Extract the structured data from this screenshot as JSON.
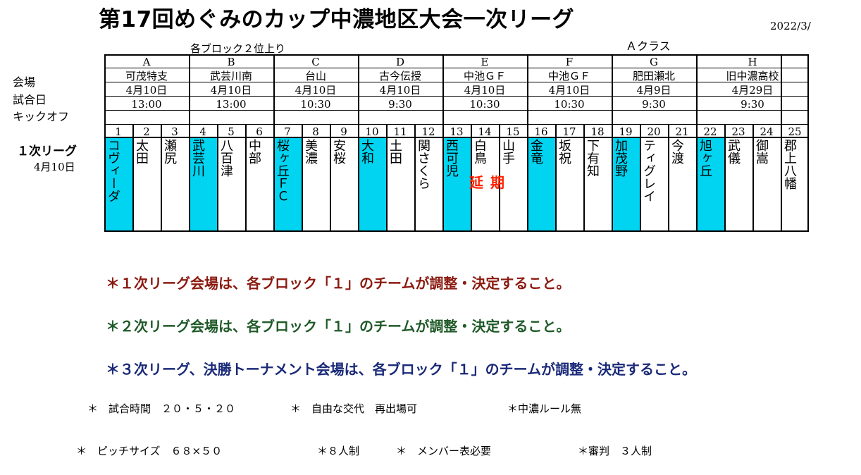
{
  "title": "第17回めぐみのカップ中濃地区大会一次リーグ",
  "date": "2022/3/",
  "class_label": "Ａクラス",
  "note": "各ブロック２位上り",
  "row_labels": {
    "venue": "会場",
    "match_day": "試合日",
    "kickoff": "キックオフ"
  },
  "league": {
    "label": "１次リーグ",
    "date": "4月10日"
  },
  "blocks": [
    {
      "name": "A",
      "venue": "可茂特支",
      "date": "4月10日",
      "kickoff": "13:00"
    },
    {
      "name": "B",
      "venue": "武芸川南",
      "date": "4月10日",
      "kickoff": "13:00"
    },
    {
      "name": "C",
      "venue": "台山",
      "date": "4月10日",
      "kickoff": "10:30"
    },
    {
      "name": "D",
      "venue": "古今伝授",
      "date": "4月10日",
      "kickoff": "9:30"
    },
    {
      "name": "E",
      "venue": "中池ＧＦ",
      "date": "4月10日",
      "kickoff": "10:30"
    },
    {
      "name": "F",
      "venue": "中池ＧＦ",
      "date": "4月10日",
      "kickoff": "10:30"
    },
    {
      "name": "G",
      "venue": "肥田瀬北",
      "date": "4月9日",
      "kickoff": "9:30"
    },
    {
      "name": "H",
      "venue": "旧中濃高校",
      "date": "4月29日",
      "kickoff": "9:30"
    }
  ],
  "teams": [
    {
      "no": "1",
      "name": "コヴィーダ",
      "highlight": true
    },
    {
      "no": "2",
      "name": "太田",
      "highlight": false
    },
    {
      "no": "3",
      "name": "瀬尻",
      "highlight": false
    },
    {
      "no": "4",
      "name": "武芸川",
      "highlight": true
    },
    {
      "no": "5",
      "name": "八百津",
      "highlight": false
    },
    {
      "no": "6",
      "name": "中部",
      "highlight": false
    },
    {
      "no": "7",
      "name": "桜ヶ丘ＦＣ",
      "highlight": true
    },
    {
      "no": "8",
      "name": "美濃",
      "highlight": false
    },
    {
      "no": "9",
      "name": "安桜",
      "highlight": false
    },
    {
      "no": "10",
      "name": "大和",
      "highlight": true
    },
    {
      "no": "11",
      "name": "土田",
      "highlight": false
    },
    {
      "no": "12",
      "name": "関さくら",
      "highlight": false
    },
    {
      "no": "13",
      "name": "西可児",
      "highlight": true
    },
    {
      "no": "14",
      "name": "白鳥",
      "highlight": false
    },
    {
      "no": "15",
      "name": "山手",
      "highlight": false
    },
    {
      "no": "16",
      "name": "金竜",
      "highlight": true
    },
    {
      "no": "17",
      "name": "坂祝",
      "highlight": false
    },
    {
      "no": "18",
      "name": "下有知",
      "highlight": false
    },
    {
      "no": "19",
      "name": "加茂野",
      "highlight": true
    },
    {
      "no": "20",
      "name": "ティグレイ",
      "highlight": false
    },
    {
      "no": "21",
      "name": "今渡",
      "highlight": false
    },
    {
      "no": "22",
      "name": "旭ヶ丘",
      "highlight": true
    },
    {
      "no": "23",
      "name": "武儀",
      "highlight": false
    },
    {
      "no": "24",
      "name": "御嵩",
      "highlight": false
    },
    {
      "no": "25",
      "name": "郡上八幡",
      "highlight": false
    }
  ],
  "postponed_label": "延期",
  "rules": [
    "＊１次リーグ会場は、各ブロック「１」のチームが調整・決定すること。",
    "＊２次リーグ会場は、各ブロック「１」のチームが調整・決定すること。",
    "＊３次リーグ、決勝トーナメント会場は、各ブロック「１」のチームが調整・決定すること。"
  ],
  "footer": {
    "match_time": "＊　試合時間　２０・５・２０",
    "substitution": "＊　自由な交代　再出場可",
    "local_rule": "＊中濃ルール無",
    "pitch": "＊　ピッチサイズ　６８×５０",
    "players": "＊８人制",
    "member_list": "＊　メンバー表必要",
    "referee": "＊審判　３人制"
  },
  "colors": {
    "highlight": "#00d4f0",
    "postponed": "#ff2000",
    "rule1": "#8b1a10",
    "rule2": "#1f5a28",
    "rule3": "#1a2a78"
  }
}
